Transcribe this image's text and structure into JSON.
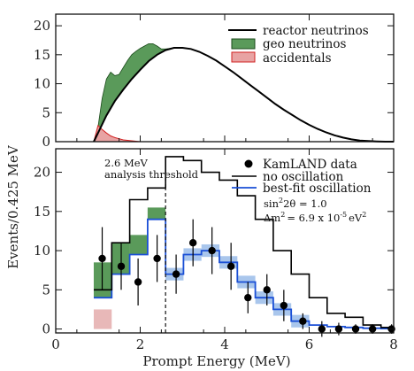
{
  "chart_data": [
    {
      "type": "area",
      "panel": "top",
      "xlim": [
        0,
        8
      ],
      "ylim": [
        0,
        22
      ],
      "yticks": [
        0,
        5,
        10,
        15,
        20
      ],
      "grid": false,
      "legend_position": "top-right",
      "colors": {
        "reactor": "#000000",
        "geo": "#5a9a5a",
        "accidentals": "#e8a3a3",
        "accidentals_edge": "#d22020"
      },
      "legend": [
        {
          "label": "reactor neutrinos",
          "style": "line",
          "color": "#000000"
        },
        {
          "label": "geo neutrinos",
          "style": "box",
          "color": "#5a9a5a"
        },
        {
          "label": "accidentals",
          "style": "box",
          "color": "#e8a3a3"
        }
      ],
      "series": [
        {
          "name": "reactor neutrinos",
          "x": [
            0.9,
            1.0,
            1.2,
            1.4,
            1.6,
            1.8,
            2.0,
            2.2,
            2.4,
            2.6,
            2.8,
            3.0,
            3.2,
            3.4,
            3.6,
            3.8,
            4.0,
            4.2,
            4.4,
            4.6,
            4.8,
            5.0,
            5.2,
            5.4,
            5.6,
            5.8,
            6.0,
            6.2,
            6.4,
            6.6,
            6.8,
            7.0,
            7.2,
            7.4,
            7.6,
            7.8,
            8.0
          ],
          "y": [
            0,
            1.5,
            4.5,
            7.0,
            9.0,
            10.8,
            12.4,
            13.9,
            15.0,
            15.8,
            16.2,
            16.2,
            16.0,
            15.5,
            14.8,
            14.0,
            13.0,
            12.0,
            10.9,
            9.8,
            8.7,
            7.6,
            6.5,
            5.5,
            4.6,
            3.7,
            2.9,
            2.2,
            1.6,
            1.1,
            0.7,
            0.4,
            0.2,
            0.1,
            0.05,
            0.0,
            0.0
          ]
        },
        {
          "name": "geo neutrinos",
          "x": [
            1.0,
            1.1,
            1.2,
            1.3,
            1.4,
            1.5,
            1.6,
            1.7,
            1.8,
            1.9,
            2.0,
            2.1,
            2.2,
            2.3,
            2.4,
            2.5,
            2.6,
            2.7,
            2.8
          ],
          "y": [
            2.5,
            7.5,
            10.8,
            12.0,
            11.4,
            11.6,
            12.8,
            14.0,
            15.0,
            15.6,
            16.1,
            16.5,
            16.9,
            16.9,
            16.5,
            16.0,
            16.0,
            16.1,
            16.2
          ]
        },
        {
          "name": "accidentals",
          "x": [
            0.9,
            1.0,
            1.1,
            1.2,
            1.3,
            1.4,
            1.5,
            1.6,
            1.8,
            2.0
          ],
          "y": [
            0,
            2.8,
            2.1,
            1.5,
            1.0,
            0.7,
            0.5,
            0.3,
            0.15,
            0.0
          ]
        }
      ]
    },
    {
      "type": "scatter",
      "panel": "bottom",
      "xlabel": "Prompt Energy (MeV)",
      "ylabel": "Events/0.425 MeV",
      "xlim": [
        0,
        8
      ],
      "ylim": [
        -0.5,
        23
      ],
      "xticks": [
        0,
        2,
        4,
        6,
        8
      ],
      "yticks": [
        0,
        5,
        10,
        15,
        20
      ],
      "grid": false,
      "legend_position": "top-right",
      "threshold": {
        "x": 2.6,
        "label_line1": "2.6 MeV",
        "label_line2": "analysis threshold"
      },
      "colors": {
        "data": "#000000",
        "no_oscillation": "#000000",
        "best_fit": "#1a4fd6",
        "best_fit_band": "#a9c6ec",
        "geo": "#5a9a5a",
        "accidentals": "#e8b8b8"
      },
      "legend": [
        {
          "label": "KamLAND data",
          "style": "dot",
          "color": "#000000"
        },
        {
          "label": "no oscillation",
          "style": "line",
          "color": "#000000"
        },
        {
          "label": "best-fit oscillation",
          "style": "line",
          "color": "#1a4fd6"
        }
      ],
      "annotation_line1": {
        "base": "sin",
        "sup1": "2",
        "mid": "2θ = 1.0"
      },
      "annotation_line2": {
        "pre": "Δm",
        "sup1": "2",
        "mid": "= 6.9 x 10",
        "sup2": "-5",
        "post": "eV",
        "sup3": "2"
      },
      "bin_edges": [
        0.9,
        1.325,
        1.75,
        2.175,
        2.6,
        3.025,
        3.45,
        3.875,
        4.3,
        4.725,
        5.15,
        5.575,
        6.0,
        6.425,
        6.85,
        7.275,
        7.7,
        8.0
      ],
      "no_oscillation": [
        5,
        11,
        16.5,
        18,
        22,
        21.5,
        20,
        19,
        17,
        14,
        10,
        7,
        4,
        2,
        1.5,
        0.5,
        0.2
      ],
      "best_fit_oscillation": [
        4,
        7,
        9.5,
        14,
        7,
        9.5,
        10,
        8.5,
        6,
        4,
        2.5,
        1,
        0.5,
        0.3,
        0.2,
        0.1,
        0.05
      ],
      "geo_component": [
        4.5,
        4.0,
        2.5,
        1.5
      ],
      "accidentals_component": [
        2.5,
        0,
        0,
        0
      ],
      "data_points": {
        "x": [
          1.1,
          1.55,
          1.95,
          2.4,
          2.85,
          3.25,
          3.7,
          4.15,
          4.55,
          5.0,
          5.4,
          5.85,
          6.3,
          6.7,
          7.1,
          7.5,
          7.95
        ],
        "y": [
          9,
          8,
          6,
          9,
          7,
          11,
          10,
          8,
          4,
          5,
          3,
          1,
          0,
          0,
          0,
          0,
          0
        ],
        "err": [
          4,
          3,
          3,
          3,
          2.5,
          3,
          3,
          3,
          2,
          2,
          2,
          1,
          1,
          0.8,
          0.6,
          0.6,
          0.6
        ]
      }
    }
  ]
}
